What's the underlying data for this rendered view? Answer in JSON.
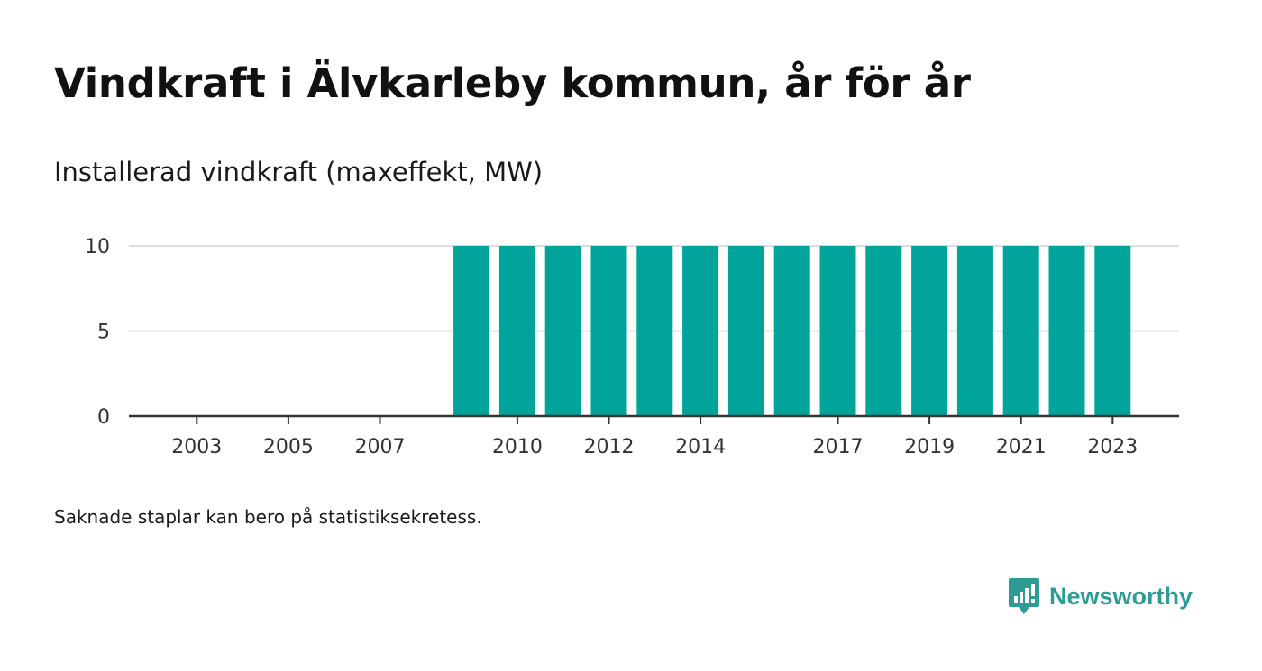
{
  "title": "Vindkraft i Älvkarleby kommun, år för år",
  "subtitle": "Installerad vindkraft (maxeffekt, MW)",
  "footnote": "Saknade staplar kan bero på statistiksekretess.",
  "brand": {
    "name": "Newsworthy",
    "color": "#2e9c94",
    "icon": "newsworthy-logo-icon"
  },
  "chart_data": {
    "type": "bar",
    "title": "Vindkraft i Älvkarleby kommun, år för år",
    "subtitle": "Installerad vindkraft (maxeffekt, MW)",
    "xlabel": "",
    "ylabel": "",
    "categories": [
      2002,
      2003,
      2004,
      2005,
      2006,
      2007,
      2008,
      2009,
      2010,
      2011,
      2012,
      2013,
      2014,
      2015,
      2016,
      2017,
      2018,
      2019,
      2020,
      2021,
      2022,
      2023
    ],
    "values": [
      null,
      null,
      null,
      null,
      null,
      null,
      null,
      10,
      10,
      10,
      10,
      10,
      10,
      10,
      10,
      10,
      10,
      10,
      10,
      10,
      10,
      10
    ],
    "x_tick_labels": [
      "2003",
      "2005",
      "2007",
      "2010",
      "2012",
      "2014",
      "2017",
      "2019",
      "2021",
      "2023"
    ],
    "y_ticks": [
      0,
      5,
      10
    ],
    "ylim": [
      0,
      10
    ],
    "grid": true,
    "legend": "none",
    "bar_color": "#00a49a"
  }
}
